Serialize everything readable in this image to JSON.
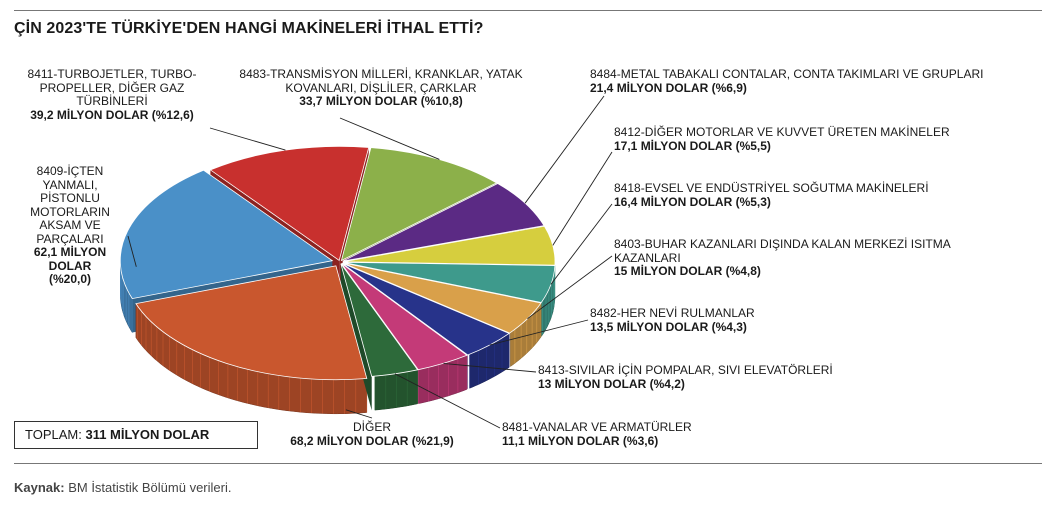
{
  "title": "ÇİN 2023'TE TÜRKİYE'DEN HANGİ MAKİNELERİ İTHAL ETTİ?",
  "total": {
    "label": "TOPLAM:",
    "value": "311 MİLYON DOLAR"
  },
  "source": {
    "label": "Kaynak:",
    "text": "BM İstatistik Bölümü verileri."
  },
  "chart_data": {
    "type": "pie",
    "title": "ÇİN 2023'TE TÜRKİYE'DEN HANGİ MAKİNELERİ İTHAL ETTİ?",
    "unit": "MİLYON DOLAR",
    "total": 311,
    "slices": [
      {
        "key": "s8483",
        "name": "8483-TRANSMİSYON MİLLERİ, KRANKLAR, YATAK KOVANLARI, DİŞLİLER, ÇARKLAR",
        "value": 33.7,
        "percent": 10.8,
        "value_label": "33,7 MİLYON DOLAR (%10,8)",
        "color": "#8cb04a"
      },
      {
        "key": "s8484",
        "name": "8484-METAL TABAKALI CONTALAR, CONTA TAKIMLARI VE GRUPLARI",
        "value": 21.4,
        "percent": 6.9,
        "value_label": "21,4 MİLYON DOLAR (%6,9)",
        "color": "#5b2a84"
      },
      {
        "key": "s8412",
        "name": "8412-DİĞER MOTORLAR VE KUVVET ÜRETEN MAKİNELER",
        "value": 17.1,
        "percent": 5.5,
        "value_label": "17,1 MİLYON DOLAR (%5,5)",
        "color": "#d6ce3e"
      },
      {
        "key": "s8418",
        "name": "8418-EVSEL VE ENDÜSTRİYEL SOĞUTMA MAKİNELERİ",
        "value": 16.4,
        "percent": 5.3,
        "value_label": "16,4 MİLYON DOLAR (%5,3)",
        "color": "#3e9a8c"
      },
      {
        "key": "s8403",
        "name": "8403-BUHAR KAZANLARI DIŞINDA KALAN MERKEZİ ISITMA KAZANLARI",
        "value": 15,
        "percent": 4.8,
        "value_label": "15 MİLYON DOLAR (%4,8)",
        "color": "#d9a04a"
      },
      {
        "key": "s8482",
        "name": "8482-HER NEVİ RULMANLAR",
        "value": 13.5,
        "percent": 4.3,
        "value_label": "13,5 MİLYON DOLAR (%4,3)",
        "color": "#27338a"
      },
      {
        "key": "s8413",
        "name": "8413-SIVILAR İÇİN POMPALAR, SIVI ELEVATÖRLERİ",
        "value": 13,
        "percent": 4.2,
        "value_label": "13 MİLYON DOLAR (%4,2)",
        "color": "#c43a78"
      },
      {
        "key": "s8481",
        "name": "8481-VANALAR VE ARMATÜRLER",
        "value": 11.1,
        "percent": 3.6,
        "value_label": "11,1 MİLYON DOLAR (%3,6)",
        "color": "#2d6a3a"
      },
      {
        "key": "sdiger",
        "name": "DİĞER",
        "value": 68.2,
        "percent": 21.9,
        "value_label": "68,2 MİLYON DOLAR (%21,9)",
        "color": "#c9572e"
      },
      {
        "key": "s8409",
        "name": "8409-İÇTEN YANMALI, PİSTONLU MOTORLARIN AKSAM VE PARÇALARI",
        "value": 62.1,
        "percent": 20.0,
        "value_label": "62,1 MİLYON DOLAR (%20,0)",
        "color": "#4a90c8"
      },
      {
        "key": "s8411",
        "name": "8411-TURBOJETLER, TURBO-PROPELLER, DİĞER GAZ TÜRBİNLERİ",
        "value": 39.2,
        "percent": 12.6,
        "value_label": "39,2 MİLYON DOLAR (%12,6)",
        "color": "#c8302e"
      }
    ],
    "label_lines": {
      "s8411": [
        "8411-TURBOJETLER, TURBO-",
        "PROPELLER, DİĞER GAZ",
        "TÜRBİNLERİ"
      ],
      "s8409": [
        "8409-İÇTEN",
        "YANMALI,",
        "PİSTONLU",
        "MOTORLARIN",
        "AKSAM VE",
        "PARÇALARI"
      ],
      "s8409v": [
        "62,1 MİLYON",
        "DOLAR",
        "(%20,0)"
      ],
      "s8483": [
        "8483-TRANSMİSYON MİLLERİ, KRANKLAR, YATAK",
        "KOVANLARI, DİŞLİLER, ÇARKLAR"
      ],
      "s8403": [
        "8403-BUHAR KAZANLARI DIŞINDA KALAN MERKEZİ ISITMA",
        "KAZANLARI"
      ]
    },
    "legend": "none"
  }
}
